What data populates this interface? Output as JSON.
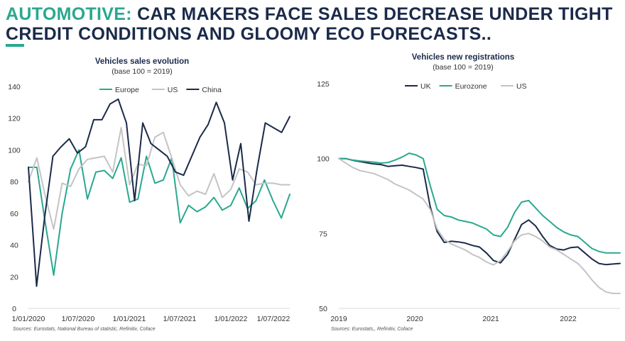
{
  "header": {
    "title_accent": "AUTOMOTIVE:",
    "title_line1_rest": " CAR MAKERS FACE SALES DECREASE UNDER TIGHT",
    "title_line2": "CREDIT CONDITIONS AND GLOOMY ECO FORECASTS.."
  },
  "colors": {
    "teal": "#2aa88f",
    "gray": "#c4c4c4",
    "navy": "#1b2a4a"
  },
  "chart_data": [
    {
      "type": "line",
      "title": "Vehicles sales evolution",
      "subtitle": "(base 100 = 2019)",
      "ylim": [
        0,
        140
      ],
      "yticks": [
        "0",
        "20",
        "40",
        "60",
        "80",
        "100",
        "120",
        "140"
      ],
      "xticks": [
        "1/01/2020",
        "1/07/2020",
        "1/01/2021",
        "1/07/2021",
        "1/01/2022",
        "1/07/2022"
      ],
      "legend": "top",
      "source": "Sources: Eurostats, National Bureau of statistic, Refinitiv, Coface",
      "series": [
        {
          "name": "Europe",
          "color": "#2aa88f",
          "values": [
            89,
            89,
            54,
            21,
            60,
            88,
            100,
            69,
            86,
            87,
            82,
            95,
            67,
            69,
            96,
            79,
            81,
            95,
            54,
            65,
            61,
            64,
            70,
            62,
            65,
            76,
            63,
            68,
            81,
            68,
            57,
            72
          ]
        },
        {
          "name": "US",
          "color": "#c4c4c4",
          "values": [
            80,
            95,
            71,
            50,
            79,
            77,
            88,
            94,
            95,
            96,
            86,
            114,
            78,
            91,
            90,
            108,
            111,
            95,
            78,
            71,
            74,
            72,
            85,
            70,
            75,
            88,
            86,
            78,
            79,
            79,
            78,
            78
          ]
        },
        {
          "name": "China",
          "color": "#1b2a4a",
          "values": [
            89,
            14,
            58,
            96,
            102,
            107,
            98,
            102,
            119,
            119,
            129,
            132,
            117,
            68,
            117,
            104,
            100,
            96,
            86,
            84,
            96,
            108,
            116,
            130,
            117,
            81,
            104,
            55,
            88,
            117,
            114,
            111,
            121
          ]
        }
      ]
    },
    {
      "type": "line",
      "title": "Vehicles new registrations",
      "subtitle": "(base 100 = 2019)",
      "ylim": [
        50,
        125
      ],
      "yticks": [
        "50",
        "75",
        "100",
        "125"
      ],
      "xticks": [
        "2019",
        "2020",
        "2021",
        "2022"
      ],
      "legend": "top",
      "source": "Sources: Eurostats,, Refinitiv, Coface",
      "series": [
        {
          "name": "UK",
          "color": "#1b2a4a",
          "values": [
            100,
            100,
            99.4,
            99.0,
            98.6,
            98.2,
            98.0,
            97.4,
            97.6,
            97.8,
            97.4,
            97.0,
            96.5,
            84.0,
            75.6,
            72.0,
            72.4,
            72.2,
            71.8,
            71.0,
            70.5,
            68.5,
            66.0,
            65.2,
            68.0,
            73.0,
            78.0,
            79.5,
            77.5,
            74.0,
            71.0,
            69.8,
            69.5,
            70.3,
            70.5,
            68.5,
            66.5,
            65.0,
            64.6,
            64.8,
            65.0
          ]
        },
        {
          "name": "Eurozone",
          "color": "#2aa88f",
          "values": [
            100,
            100,
            99.5,
            99.2,
            99.0,
            98.8,
            98.5,
            98.7,
            99.5,
            100.5,
            101.8,
            101.2,
            100.0,
            91.0,
            83.0,
            81.0,
            80.5,
            79.5,
            79.0,
            78.5,
            77.5,
            76.5,
            74.5,
            74.0,
            77.0,
            82.0,
            85.5,
            86.0,
            83.5,
            81.0,
            79.0,
            77.0,
            75.5,
            74.5,
            74.0,
            72.0,
            70.0,
            69.0,
            68.5,
            68.5,
            68.5
          ]
        },
        {
          "name": "US",
          "color": "#c4c4c4",
          "values": [
            100,
            98.5,
            97.0,
            96.0,
            95.5,
            95.0,
            94.0,
            93.0,
            91.5,
            90.5,
            89.5,
            88.0,
            86.5,
            83.0,
            76.5,
            73.0,
            71.5,
            70.5,
            69.5,
            68.0,
            67.0,
            65.5,
            64.5,
            66.0,
            69.0,
            72.5,
            74.5,
            75.0,
            74.0,
            72.5,
            70.5,
            69.5,
            68.0,
            66.5,
            65.0,
            62.5,
            59.5,
            57.0,
            55.5,
            55.0,
            55.0
          ]
        }
      ]
    }
  ]
}
